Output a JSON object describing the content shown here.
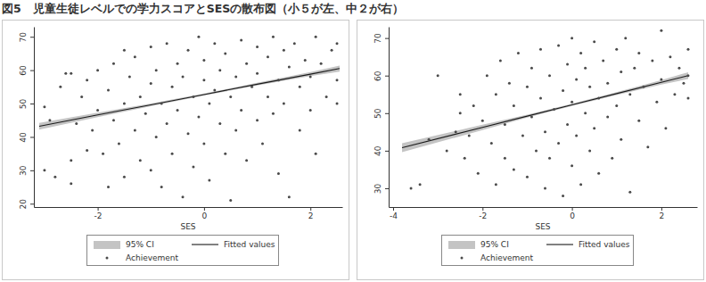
{
  "title": "図5　児童生徒レベルでの学力スコアとSESの散布図（小５が左、中２が右）",
  "chart_data": [
    {
      "type": "scatter",
      "xlabel": "SES",
      "grid": false,
      "xlim": [
        -3.2,
        2.6
      ],
      "xticks": [
        -2,
        0,
        2
      ],
      "ylim": [
        19,
        73
      ],
      "yticks": [
        20,
        30,
        40,
        50,
        60,
        70
      ],
      "series": [
        {
          "name": "95% CI",
          "type": "area",
          "color": "#c4c4c4",
          "x": [
            -3.1,
            -2,
            -1,
            0,
            1,
            2,
            2.55
          ],
          "lower": [
            42.2,
            45.9,
            49.2,
            52.4,
            55.4,
            58.2,
            59.6
          ],
          "upper": [
            44.2,
            47.3,
            50.0,
            53.0,
            56.2,
            59.4,
            61.4
          ]
        },
        {
          "name": "Fitted values",
          "type": "line",
          "color": "#1a1a1a",
          "line_style": "solid",
          "x": [
            -3.1,
            -2,
            -1,
            0,
            1,
            2,
            2.55
          ],
          "values": [
            43.2,
            46.6,
            49.6,
            52.7,
            55.8,
            58.8,
            60.5
          ]
        },
        {
          "name": "Achievement",
          "type": "scatter",
          "color": "#4a4a4a",
          "marker": "circle",
          "x": [
            -3.0,
            -3.0,
            -2.9,
            -2.8,
            -2.7,
            -2.6,
            -2.5,
            -2.5,
            -2.5,
            -2.4,
            -2.3,
            -2.2,
            -2.2,
            -2.1,
            -2.0,
            -2.0,
            -1.9,
            -1.8,
            -1.8,
            -1.7,
            -1.7,
            -1.6,
            -1.5,
            -1.5,
            -1.5,
            -1.4,
            -1.3,
            -1.3,
            -1.2,
            -1.2,
            -1.1,
            -1.0,
            -1.0,
            -1.0,
            -0.9,
            -0.9,
            -0.8,
            -0.8,
            -0.7,
            -0.7,
            -0.6,
            -0.6,
            -0.5,
            -0.5,
            -0.4,
            -0.4,
            -0.3,
            -0.3,
            -0.2,
            -0.2,
            -0.1,
            -0.1,
            0,
            0,
            0,
            0.1,
            0.1,
            0.2,
            0.2,
            0.3,
            0.3,
            0.4,
            0.4,
            0.5,
            0.5,
            0.6,
            0.6,
            0.7,
            0.7,
            0.8,
            0.8,
            0.9,
            1.0,
            1.0,
            1.0,
            1.1,
            1.2,
            1.2,
            1.3,
            1.3,
            1.4,
            1.4,
            1.5,
            1.5,
            1.6,
            1.6,
            1.7,
            1.8,
            1.8,
            1.9,
            2.0,
            2.0,
            2.1,
            2.1,
            2.2,
            2.3,
            2.4,
            2.5,
            2.5,
            2.5
          ],
          "values": [
            49,
            30,
            45,
            28,
            55,
            59,
            59,
            33,
            26,
            44,
            52,
            57,
            36,
            42,
            60,
            48,
            35,
            54,
            25,
            62,
            45,
            38,
            66,
            50,
            28,
            58,
            42,
            64,
            33,
            52,
            47,
            67,
            56,
            30,
            40,
            60,
            50,
            25,
            68,
            44,
            55,
            35,
            62,
            48,
            22,
            58,
            41,
            66,
            52,
            31,
            70,
            46,
            57,
            38,
            63,
            50,
            27,
            68,
            54,
            44,
            60,
            35,
            65,
            52,
            21,
            58,
            42,
            69,
            48,
            62,
            33,
            55,
            67,
            45,
            59,
            38,
            64,
            52,
            70,
            47,
            57,
            29,
            66,
            50,
            61,
            22,
            68,
            55,
            42,
            63,
            58,
            48,
            70,
            35,
            62,
            52,
            66,
            57,
            68,
            50
          ]
        }
      ]
    },
    {
      "type": "scatter",
      "xlabel": "SES",
      "grid": false,
      "xlim": [
        -4.1,
        2.8
      ],
      "xticks": [
        -4,
        -2,
        0,
        2
      ],
      "ylim": [
        25,
        73
      ],
      "yticks": [
        30,
        40,
        50,
        60,
        70
      ],
      "series": [
        {
          "name": "95% CI",
          "type": "area",
          "color": "#c4c4c4",
          "x": [
            -3.8,
            -2,
            -1,
            0,
            1,
            2,
            2.6
          ],
          "lower": [
            39.6,
            45.5,
            48.8,
            51.9,
            54.8,
            57.6,
            59.1
          ],
          "upper": [
            42.0,
            46.9,
            49.6,
            52.5,
            55.6,
            58.8,
            60.9
          ]
        },
        {
          "name": "Fitted values",
          "type": "line",
          "color": "#1a1a1a",
          "line_style": "solid",
          "x": [
            -3.8,
            -2,
            -1,
            0,
            1,
            2,
            2.6
          ],
          "values": [
            40.8,
            46.2,
            49.2,
            52.2,
            55.2,
            58.2,
            60.0
          ]
        },
        {
          "name": "Achievement",
          "type": "scatter",
          "color": "#4a4a4a",
          "marker": "circle",
          "x": [
            -3.6,
            -3.4,
            -3.2,
            -3.0,
            -2.8,
            -2.6,
            -2.5,
            -2.5,
            -2.4,
            -2.3,
            -2.2,
            -2.1,
            -2.0,
            -1.9,
            -1.8,
            -1.7,
            -1.7,
            -1.6,
            -1.5,
            -1.5,
            -1.4,
            -1.3,
            -1.3,
            -1.2,
            -1.1,
            -1.0,
            -1.0,
            -0.9,
            -0.9,
            -0.8,
            -0.7,
            -0.7,
            -0.6,
            -0.6,
            -0.5,
            -0.5,
            -0.4,
            -0.3,
            -0.3,
            -0.2,
            -0.2,
            -0.1,
            -0.1,
            0,
            0,
            0,
            0.1,
            0.1,
            0.2,
            0.2,
            0.3,
            0.3,
            0.4,
            0.4,
            0.5,
            0.5,
            0.6,
            0.6,
            0.7,
            0.8,
            0.8,
            0.9,
            1.0,
            1.0,
            1.1,
            1.1,
            1.2,
            1.3,
            1.3,
            1.4,
            1.5,
            1.5,
            1.6,
            1.7,
            1.8,
            1.9,
            2.0,
            2.0,
            2.1,
            2.2,
            2.3,
            2.4,
            2.5,
            2.6,
            2.6,
            2.6
          ],
          "values": [
            30,
            31,
            43,
            60,
            40,
            45,
            55,
            50,
            38,
            44,
            52,
            34,
            48,
            60,
            42,
            55,
            31,
            64,
            47,
            38,
            58,
            35,
            52,
            66,
            44,
            57,
            33,
            62,
            49,
            40,
            67,
            54,
            30,
            45,
            60,
            38,
            51,
            68,
            42,
            56,
            28,
            63,
            47,
            70,
            53,
            36,
            59,
            44,
            66,
            31,
            50,
            62,
            40,
            57,
            69,
            46,
            54,
            34,
            64,
            49,
            58,
            38,
            67,
            52,
            61,
            43,
            70,
            55,
            29,
            62,
            48,
            66,
            57,
            41,
            64,
            53,
            72,
            59,
            46,
            65,
            55,
            62,
            58,
            67,
            54,
            60
          ]
        }
      ]
    }
  ]
}
